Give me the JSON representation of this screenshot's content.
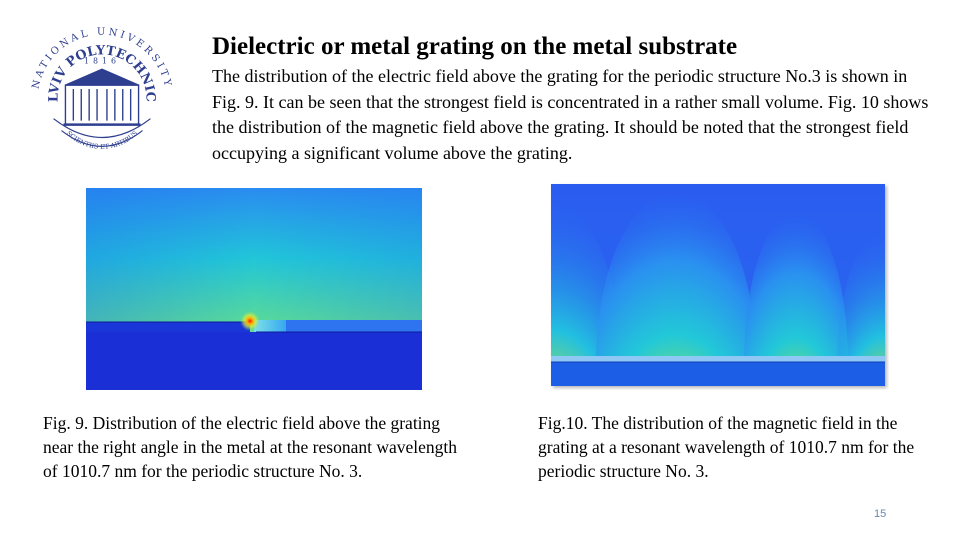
{
  "logo": {
    "university_text": "NATIONAL UNIVERSITY",
    "name_text": "LVIV POLYTECHNIC",
    "year": "1816",
    "motto": "SCIENTIIS ET ARTIBUS",
    "color": "#2e3f8f"
  },
  "slide": {
    "title": "Dielectric or metal grating on the metal substrate",
    "intro": "The distribution of the electric field above the grating for the periodic structure No.3 is shown in Fig. 9. It can be seen that the strongest field is concentrated in a rather small volume. Fig. 10 shows the distribution of the magnetic field above the grating. It should be noted that the strongest field occupying a significant volume above the grating.",
    "page_number": "15"
  },
  "figures": {
    "electric": {
      "caption": "Fig. 9. Distribution of the electric field above the grating near the right angle in the metal at the resonant wavelength of 1010.7 nm for the periodic structure No. 3."
    },
    "magnetic": {
      "caption": "Fig.10. The distribution of the magnetic field in the grating at a resonant wavelength of 1010.7 nm for the periodic structure No. 3."
    }
  }
}
